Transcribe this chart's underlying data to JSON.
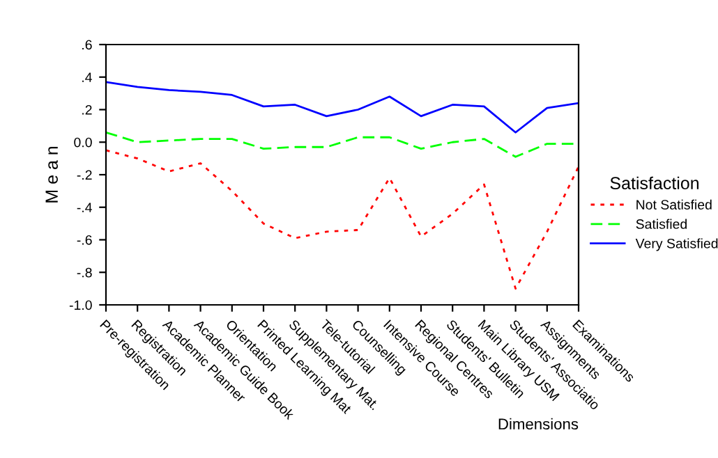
{
  "chart_data": {
    "type": "line",
    "xlabel": "Dimensions",
    "ylabel": "M e a n",
    "legend_title": "Satisfaction",
    "categories": [
      "Pre-registration",
      "Registration",
      "Academic Planner",
      "Academic Guide Book",
      "Orientation",
      "Printed Learning Mat",
      "Supplementary Mat.",
      "Tele-tutorial",
      "Counselling",
      "Intensive Course",
      "Regional Centres",
      "Students' Bulletin",
      "Main Library USM",
      "Students' Associatio",
      "Assignments",
      "Examinations"
    ],
    "series": [
      {
        "name": "Not Satisfied",
        "color": "#ff0000",
        "line_style": "dotted",
        "values": [
          -0.05,
          -0.1,
          -0.18,
          -0.13,
          -0.3,
          -0.5,
          -0.59,
          -0.55,
          -0.54,
          -0.22,
          -0.58,
          -0.44,
          -0.26,
          -0.9,
          -0.55,
          -0.15
        ]
      },
      {
        "name": "Satisfied",
        "color": "#00ff00",
        "line_style": "dashed",
        "values": [
          0.06,
          0.0,
          0.01,
          0.02,
          0.02,
          -0.04,
          -0.03,
          -0.03,
          0.03,
          0.03,
          -0.04,
          0.0,
          0.02,
          -0.09,
          -0.01,
          -0.01
        ]
      },
      {
        "name": "Very Satisfied",
        "color": "#0000ff",
        "line_style": "solid",
        "values": [
          0.37,
          0.34,
          0.32,
          0.31,
          0.29,
          0.22,
          0.23,
          0.16,
          0.2,
          0.28,
          0.16,
          0.23,
          0.22,
          0.06,
          0.21,
          0.24
        ]
      }
    ],
    "ylim": [
      -1.0,
      0.6
    ],
    "yticks": [
      {
        "value": 0.6,
        "label": ".6"
      },
      {
        "value": 0.4,
        "label": ".4"
      },
      {
        "value": 0.2,
        "label": ".2"
      },
      {
        "value": 0.0,
        "label": "0.0"
      },
      {
        "value": -0.2,
        "label": "-.2"
      },
      {
        "value": -0.4,
        "label": "-.4"
      },
      {
        "value": -0.6,
        "label": "-.6"
      },
      {
        "value": -0.8,
        "label": "-.8"
      },
      {
        "value": -1.0,
        "label": "-1.0"
      }
    ],
    "grid": false,
    "legend": "right",
    "marker": "none"
  }
}
